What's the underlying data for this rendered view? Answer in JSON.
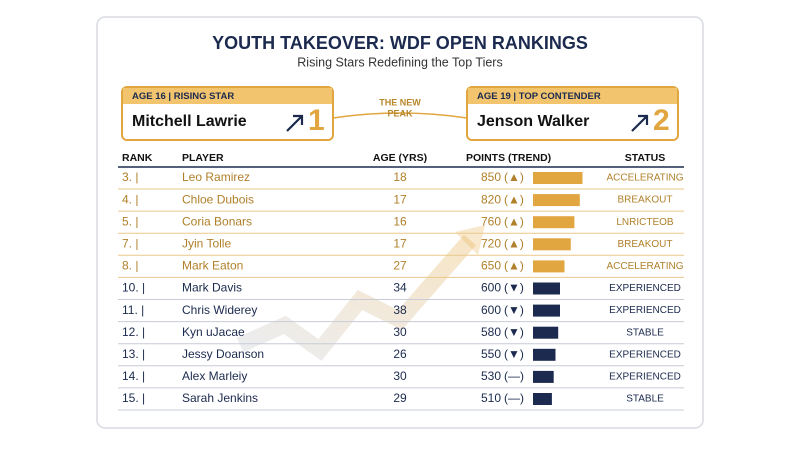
{
  "header": {
    "title": "YOUTH TAKEOVER: WDF OPEN RANKINGS",
    "subtitle": "Rising Stars Redefining the Top Tiers"
  },
  "cards": [
    {
      "tag": "AGE 16 | RISING STAR",
      "name": "Mitchell Lawrie",
      "rank": 1
    },
    {
      "tag": "AGE 19 | TOP CONTENDER",
      "name": "Jenson Walker",
      "rank": 2
    }
  ],
  "connector": [
    "THE NEW",
    "PEAK"
  ],
  "table": {
    "columns": [
      "RANK",
      "PLAYER",
      "AGE (YRS)",
      "POINTS (TREND)",
      "STATUS"
    ],
    "rows": [
      {
        "rank": "3. |",
        "player": "Leo Ramirez",
        "age": 18,
        "points": 850,
        "trend": "(▲)",
        "status": "ACCELERATING",
        "highlight": true
      },
      {
        "rank": "4. |",
        "player": "Chloe Dubois",
        "age": 17,
        "points": 820,
        "trend": "(▲)",
        "status": "BREAKOUT",
        "highlight": true
      },
      {
        "rank": "5. |",
        "player": "Coria Bonars",
        "age": 16,
        "points": 760,
        "trend": "(▲)",
        "status": "LNRICTEOB",
        "highlight": true
      },
      {
        "rank": "7. |",
        "player": "Jyin Tolle",
        "age": 17,
        "points": 720,
        "trend": "(▲)",
        "status": "BREAKOUT",
        "highlight": true
      },
      {
        "rank": "8. |",
        "player": "Mark Eaton",
        "age": 27,
        "points": 650,
        "trend": "(▲)",
        "status": "ACCELERATING",
        "highlight": true
      },
      {
        "rank": "10. |",
        "player": "Mark Davis",
        "age": 34,
        "points": 600,
        "trend": "(▼)",
        "status": "EXPERIENCED",
        "highlight": false
      },
      {
        "rank": "11. |",
        "player": "Chris Widerey",
        "age": 38,
        "points": 600,
        "trend": "(▼)",
        "status": "EXPERIENCED",
        "highlight": false
      },
      {
        "rank": "12. |",
        "player": "Kyn uJacae",
        "age": 30,
        "points": 580,
        "trend": "(▼)",
        "status": "STABLE",
        "highlight": false
      },
      {
        "rank": "13. |",
        "player": "Jessy Doanson",
        "age": 26,
        "points": 550,
        "trend": "(▼)",
        "status": "EXPERIENCED",
        "highlight": false
      },
      {
        "rank": "14. |",
        "player": "Alex Marleiy",
        "age": 30,
        "points": 530,
        "trend": "(—)",
        "status": "EXPERIENCED",
        "highlight": false
      },
      {
        "rank": "15. |",
        "player": "Sarah Jenkins",
        "age": 29,
        "points": 510,
        "trend": "(—)",
        "status": "STABLE",
        "highlight": false
      }
    ]
  }
}
